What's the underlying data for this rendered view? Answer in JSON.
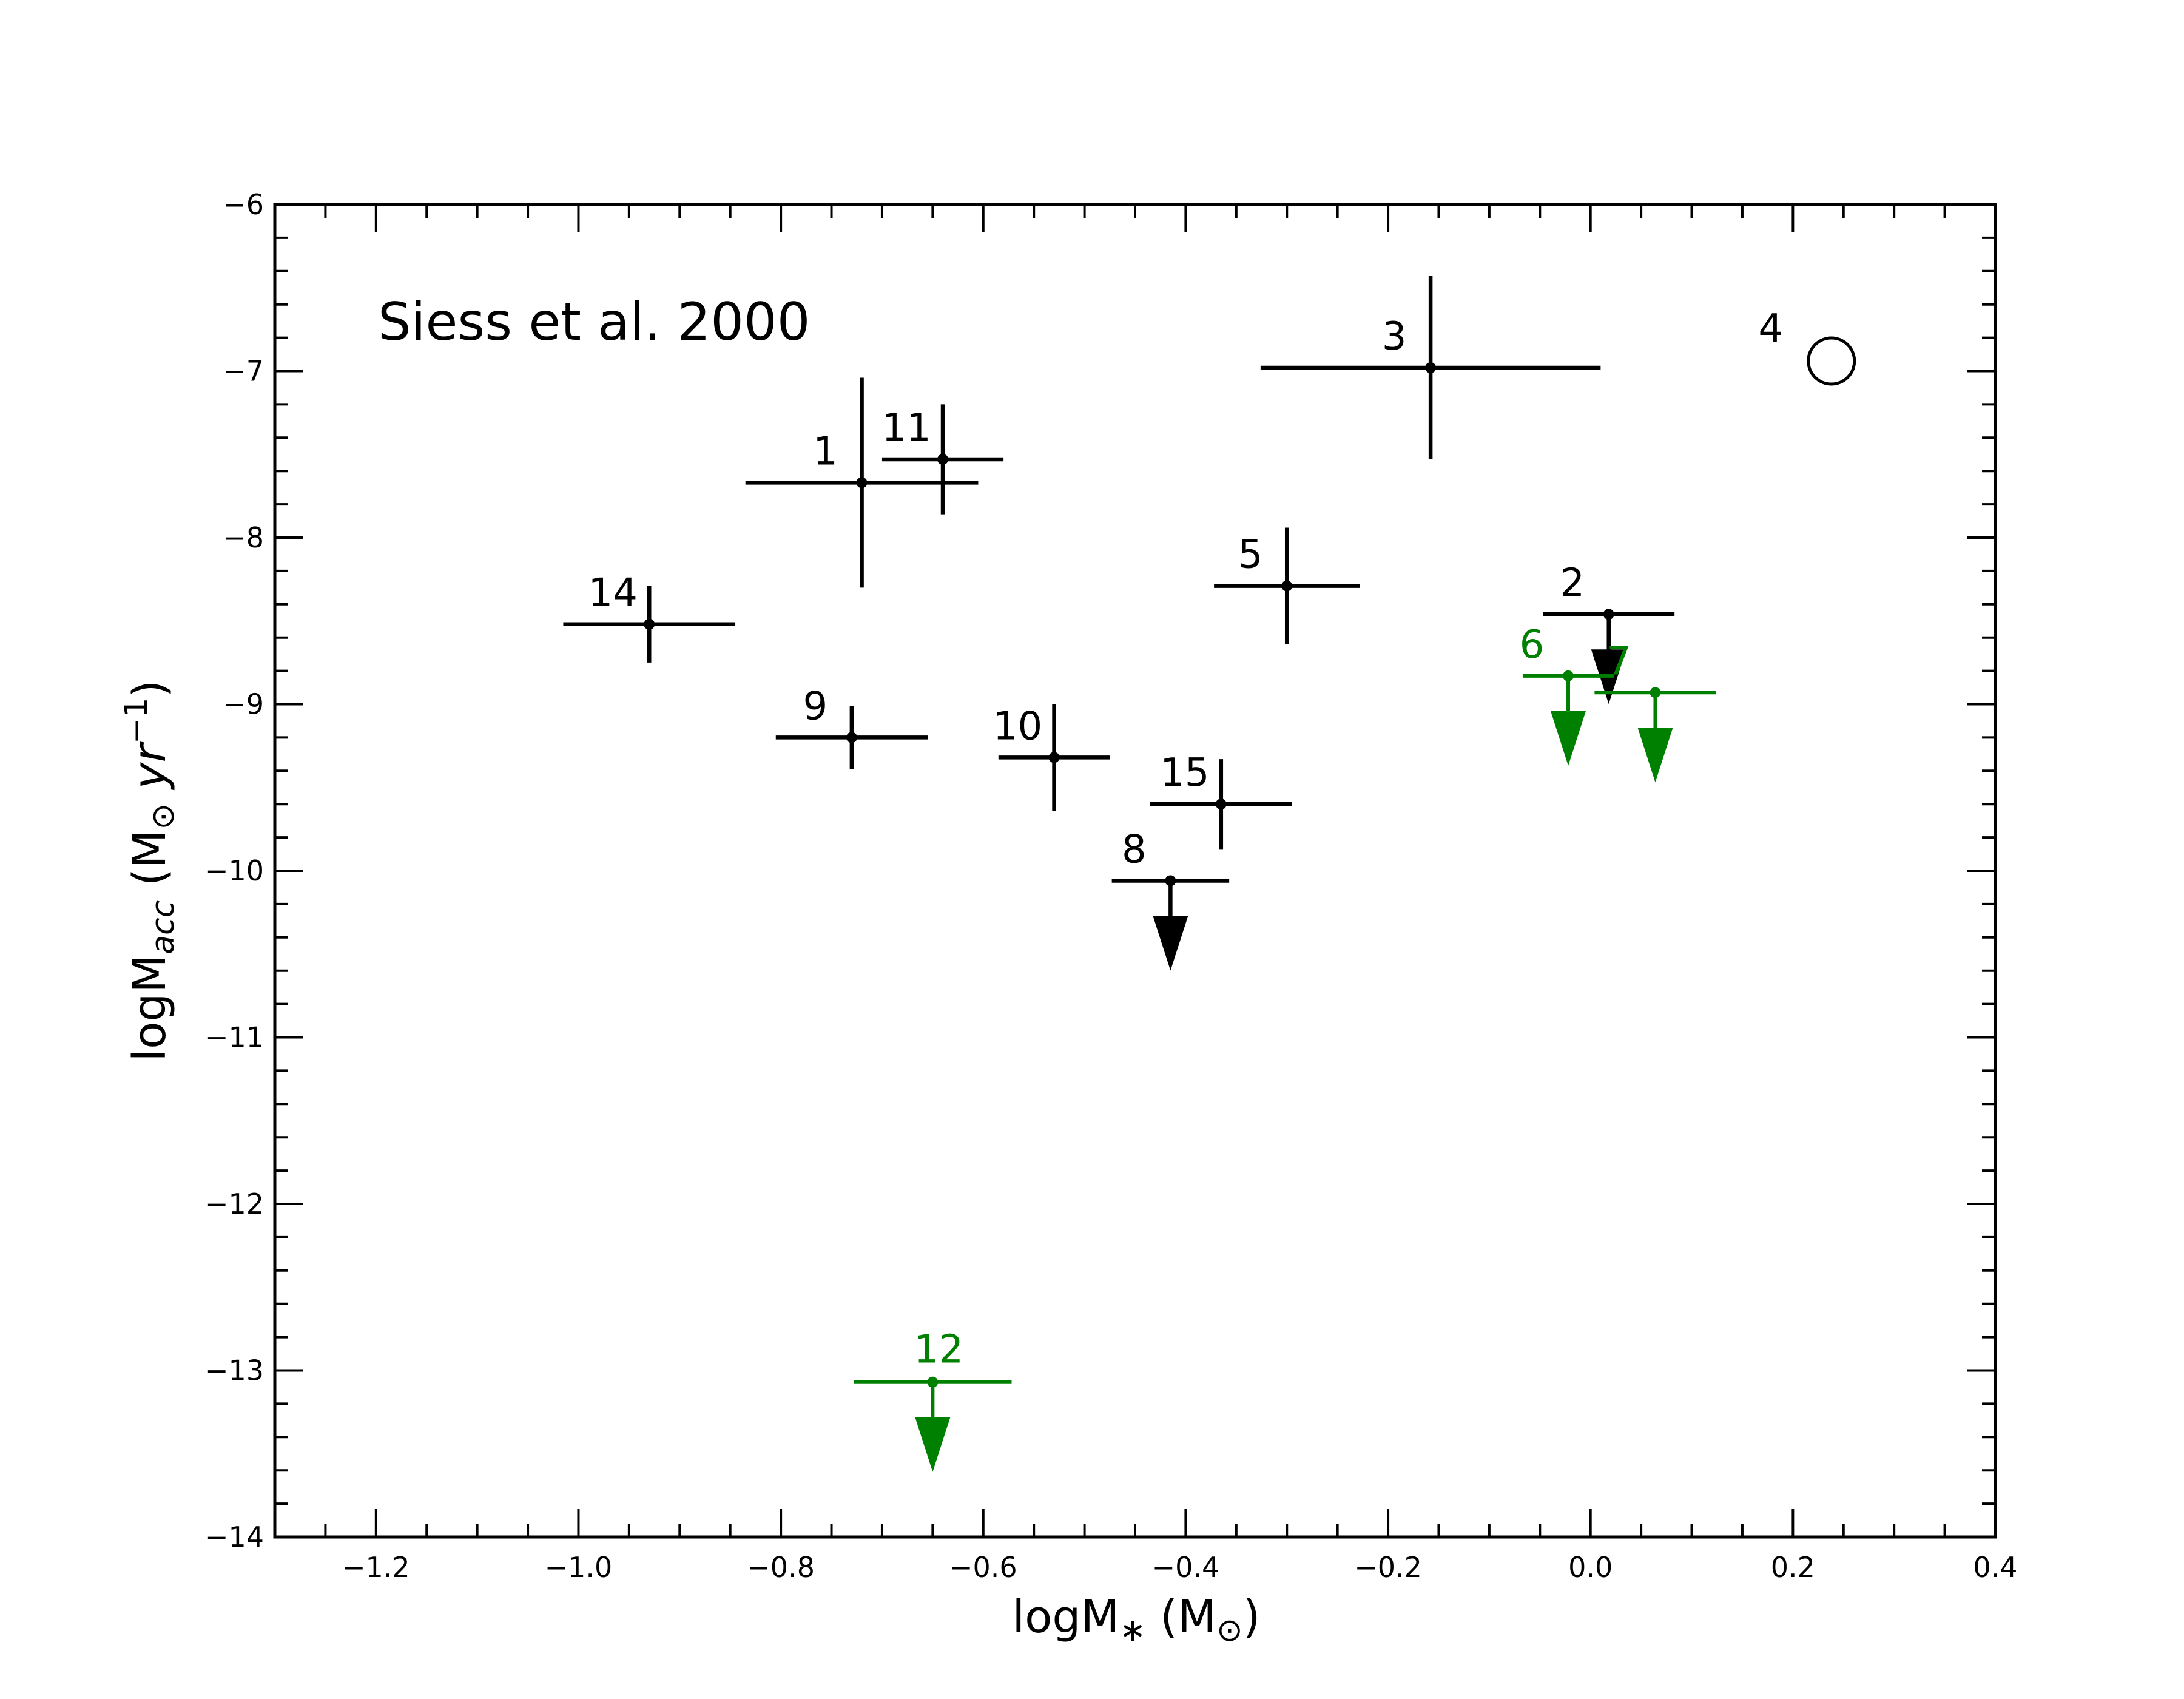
{
  "chart_data": {
    "type": "scatter",
    "annotation": "Siess et al. 2000",
    "xlabel": {
      "base": "logM",
      "sub": "∗",
      "unit_open": " (M",
      "unit_sub": "⊙",
      "unit_close": ")"
    },
    "ylabel": {
      "base": "logM",
      "sub": "acc",
      "unit_open": " (M",
      "unit_sub": "⊙",
      "unit_mid": " yr",
      "unit_sup": "−1",
      "unit_close": ")"
    },
    "xlim": [
      -1.3,
      0.4
    ],
    "ylim": [
      -14,
      -6
    ],
    "xticks": [
      {
        "value": -1.2,
        "label": "−1.2"
      },
      {
        "value": -1.0,
        "label": "−1.0"
      },
      {
        "value": -0.8,
        "label": "−0.8"
      },
      {
        "value": -0.6,
        "label": "−0.6"
      },
      {
        "value": -0.4,
        "label": "−0.4"
      },
      {
        "value": -0.2,
        "label": "−0.2"
      },
      {
        "value": 0.0,
        "label": "0.0"
      },
      {
        "value": 0.2,
        "label": "0.2"
      },
      {
        "value": 0.4,
        "label": "0.4"
      }
    ],
    "yticks": [
      {
        "value": -6,
        "label": "−6"
      },
      {
        "value": -7,
        "label": "−7"
      },
      {
        "value": -8,
        "label": "−8"
      },
      {
        "value": -9,
        "label": "−9"
      },
      {
        "value": -10,
        "label": "−10"
      },
      {
        "value": -11,
        "label": "−11"
      },
      {
        "value": -12,
        "label": "−12"
      },
      {
        "value": -13,
        "label": "−13"
      },
      {
        "value": -14,
        "label": "−14"
      }
    ],
    "grid": false,
    "colors": {
      "black": "#000000",
      "green": "#008000"
    },
    "points": [
      {
        "id": "1",
        "x": -0.72,
        "y": -7.67,
        "xerr": [
          0.115,
          0.115
        ],
        "yerr": [
          0.63,
          0.63
        ],
        "upper_limit": false,
        "color": "black",
        "label_pos": "upper-left"
      },
      {
        "id": "2",
        "x": 0.018,
        "y": -8.46,
        "xerr": [
          0.065,
          0.065
        ],
        "yerr": null,
        "upper_limit": true,
        "color": "black",
        "label_pos": "upper-left"
      },
      {
        "id": "3",
        "x": -0.158,
        "y": -6.98,
        "xerr": [
          0.168,
          0.168
        ],
        "yerr": [
          0.55,
          0.55
        ],
        "upper_limit": false,
        "color": "black",
        "label_pos": "upper-left"
      },
      {
        "id": "4",
        "x": 0.238,
        "y": -6.94,
        "xerr": null,
        "yerr": null,
        "upper_limit": false,
        "open_marker": true,
        "color": "black",
        "label_pos": "upper-left"
      },
      {
        "id": "5",
        "x": -0.3,
        "y": -8.29,
        "xerr": [
          0.072,
          0.072
        ],
        "yerr": [
          0.35,
          0.35
        ],
        "upper_limit": false,
        "color": "black",
        "label_pos": "upper-left"
      },
      {
        "id": "6",
        "x": -0.022,
        "y": -8.83,
        "xerr": [
          0.045,
          0.045
        ],
        "yerr": null,
        "upper_limit": true,
        "color": "green",
        "label_pos": "upper-left"
      },
      {
        "id": "7",
        "x": 0.064,
        "y": -8.93,
        "xerr": [
          0.06,
          0.06
        ],
        "yerr": null,
        "upper_limit": true,
        "color": "green",
        "label_pos": "upper-left"
      },
      {
        "id": "8",
        "x": -0.415,
        "y": -10.06,
        "xerr": [
          0.058,
          0.058
        ],
        "yerr": null,
        "upper_limit": true,
        "color": "black",
        "label_pos": "upper-left"
      },
      {
        "id": "9",
        "x": -0.73,
        "y": -9.2,
        "xerr": [
          0.075,
          0.075
        ],
        "yerr": [
          0.19,
          0.19
        ],
        "upper_limit": false,
        "color": "black",
        "label_pos": "upper-left"
      },
      {
        "id": "10",
        "x": -0.53,
        "y": -9.32,
        "xerr": [
          0.055,
          0.055
        ],
        "yerr": [
          0.32,
          0.32
        ],
        "upper_limit": false,
        "color": "black",
        "label_pos": "upper-left"
      },
      {
        "id": "11",
        "x": -0.64,
        "y": -7.53,
        "xerr": [
          0.06,
          0.06
        ],
        "yerr": [
          0.33,
          0.33
        ],
        "upper_limit": false,
        "color": "black",
        "label_pos": "upper-left"
      },
      {
        "id": "12",
        "x": -0.65,
        "y": -13.07,
        "xerr": [
          0.078,
          0.078
        ],
        "yerr": null,
        "upper_limit": true,
        "color": "green",
        "label_pos": "top"
      },
      {
        "id": "14",
        "x": -0.93,
        "y": -8.52,
        "xerr": [
          0.085,
          0.085
        ],
        "yerr": [
          0.23,
          0.23
        ],
        "upper_limit": false,
        "color": "black",
        "label_pos": "upper-left"
      },
      {
        "id": "15",
        "x": -0.365,
        "y": -9.6,
        "xerr": [
          0.07,
          0.07
        ],
        "yerr": [
          0.27,
          0.27
        ],
        "upper_limit": false,
        "color": "black",
        "label_pos": "upper-left"
      }
    ]
  }
}
